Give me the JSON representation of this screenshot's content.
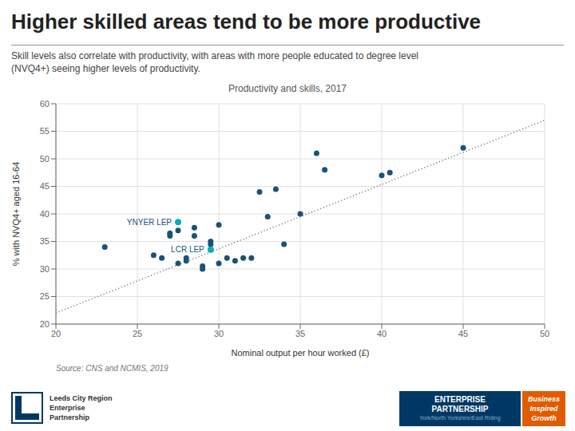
{
  "chart_data": {
    "type": "scatter",
    "title": "Higher skilled areas tend to be more productive",
    "subtitle": "Skill levels also correlate with productivity, with areas with more people educated to degree level\n(NVQ4+) seeing higher levels of productivity.",
    "chart_title": "Productivity and skills, 2017",
    "x_label": "Nominal output per hour worked (£)",
    "y_label": "% with NVQ4+ aged 16-64",
    "xlim": [
      20,
      50
    ],
    "ylim": [
      20,
      60
    ],
    "xticks": [
      20,
      25,
      30,
      35,
      40,
      45,
      50
    ],
    "yticks": [
      20,
      25,
      30,
      35,
      40,
      45,
      50,
      55,
      60
    ],
    "grid": true,
    "series": [
      {
        "type": "scatter",
        "color": "#1a5276",
        "x": [
          23,
          26,
          26.5,
          27,
          27,
          27.5,
          27.5,
          28,
          28,
          28.5,
          28.5,
          29,
          29,
          29.5,
          29.5,
          30,
          30,
          30.5,
          31,
          31.5,
          32,
          32.5,
          33,
          33.5,
          34,
          35,
          36,
          36.5,
          40,
          40.5,
          45
        ],
        "values": [
          34,
          32.5,
          32,
          36,
          36.5,
          37,
          31,
          31.5,
          32,
          36,
          37.5,
          30.5,
          30,
          34.5,
          35,
          38,
          31,
          32,
          31.5,
          32,
          32,
          44,
          39.5,
          44.5,
          34.5,
          40,
          51,
          48,
          47,
          47.5,
          52
        ]
      },
      {
        "type": "scatter",
        "color": "#00b0b9",
        "x": [
          27.5,
          29.5
        ],
        "values": [
          38.5,
          33.5
        ]
      },
      {
        "type": "line",
        "line_style": "dotted",
        "color": "#666666",
        "x": [
          20,
          50
        ],
        "values": [
          22,
          57
        ]
      }
    ],
    "annotations": [
      {
        "text": "YNYER LEP",
        "x": 27.5,
        "y": 38.5,
        "color": "#1a5276"
      },
      {
        "text": "LCR LEP",
        "x": 29.5,
        "y": 33.5,
        "color": "#1a5276"
      },
      {
        "text": "Source: CNS and NCMIS, 2019"
      },
      {
        "text": "Leeds City Region"
      },
      {
        "text": "Enterprise"
      },
      {
        "text": "Partnership"
      },
      {
        "text": "ENTERPRISE"
      },
      {
        "text": "PARTNERSHIP"
      },
      {
        "text": "York/North Yorkshire/East Riding"
      },
      {
        "text": "Business"
      },
      {
        "text": "Inspired"
      },
      {
        "text": "Growth"
      }
    ]
  }
}
